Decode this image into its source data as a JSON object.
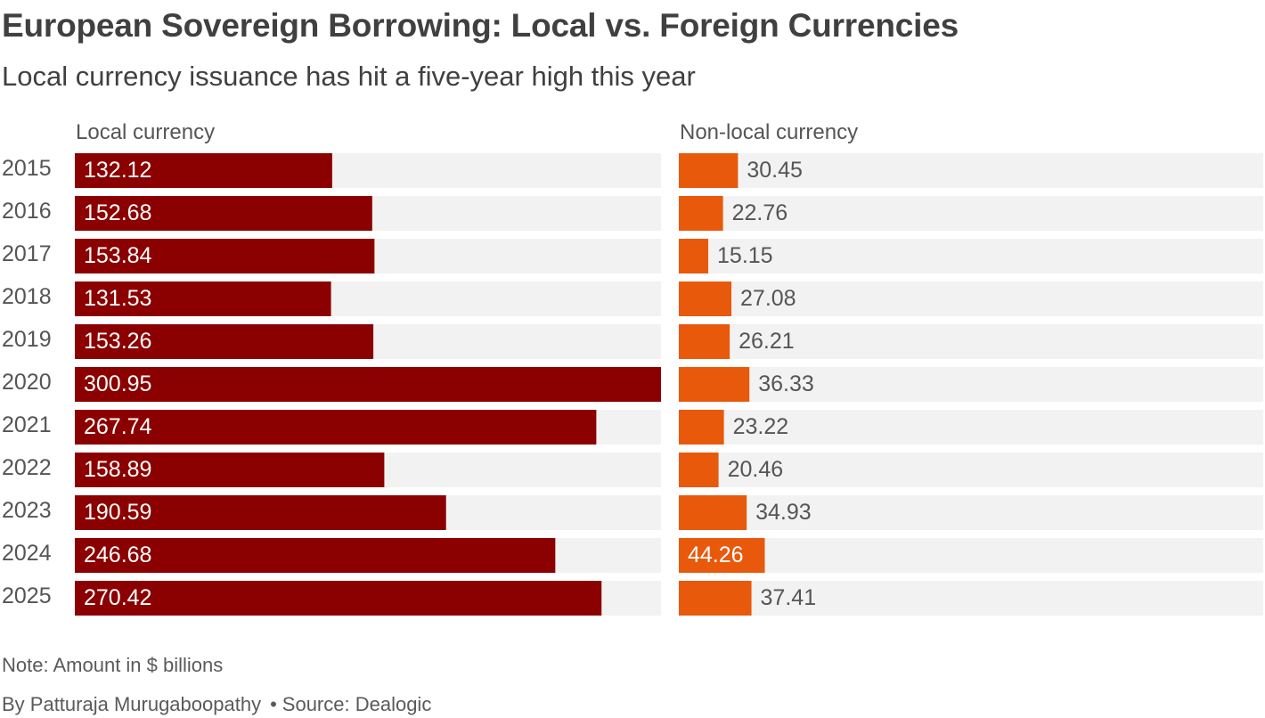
{
  "title": "European Sovereign Borrowing: Local vs. Foreign Currencies",
  "subtitle": "Local currency issuance has hit a five-year high this year",
  "note": "Note: Amount in $ billions",
  "byline": "By Patturaja Murugaboopathy",
  "separator": "•",
  "source": "Source: Dealogic",
  "colors": {
    "local": "#8b0000",
    "nonlocal": "#e8590c",
    "track": "#f2f2f2"
  },
  "chart_data": {
    "type": "bar",
    "orientation": "horizontal",
    "title": "European Sovereign Borrowing: Local vs. Foreign Currencies",
    "unit": "$ billions",
    "categories": [
      "2015",
      "2016",
      "2017",
      "2018",
      "2019",
      "2020",
      "2021",
      "2022",
      "2023",
      "2024",
      "2025"
    ],
    "series": [
      {
        "name": "Local currency",
        "values": [
          132.12,
          152.68,
          153.84,
          131.53,
          153.26,
          300.95,
          267.74,
          158.89,
          190.59,
          246.68,
          270.42
        ]
      },
      {
        "name": "Non-local currency",
        "values": [
          30.45,
          22.76,
          15.15,
          27.08,
          26.21,
          36.33,
          23.22,
          20.46,
          34.93,
          44.26,
          37.41
        ]
      }
    ],
    "xlim": [
      0,
      300.95
    ]
  }
}
